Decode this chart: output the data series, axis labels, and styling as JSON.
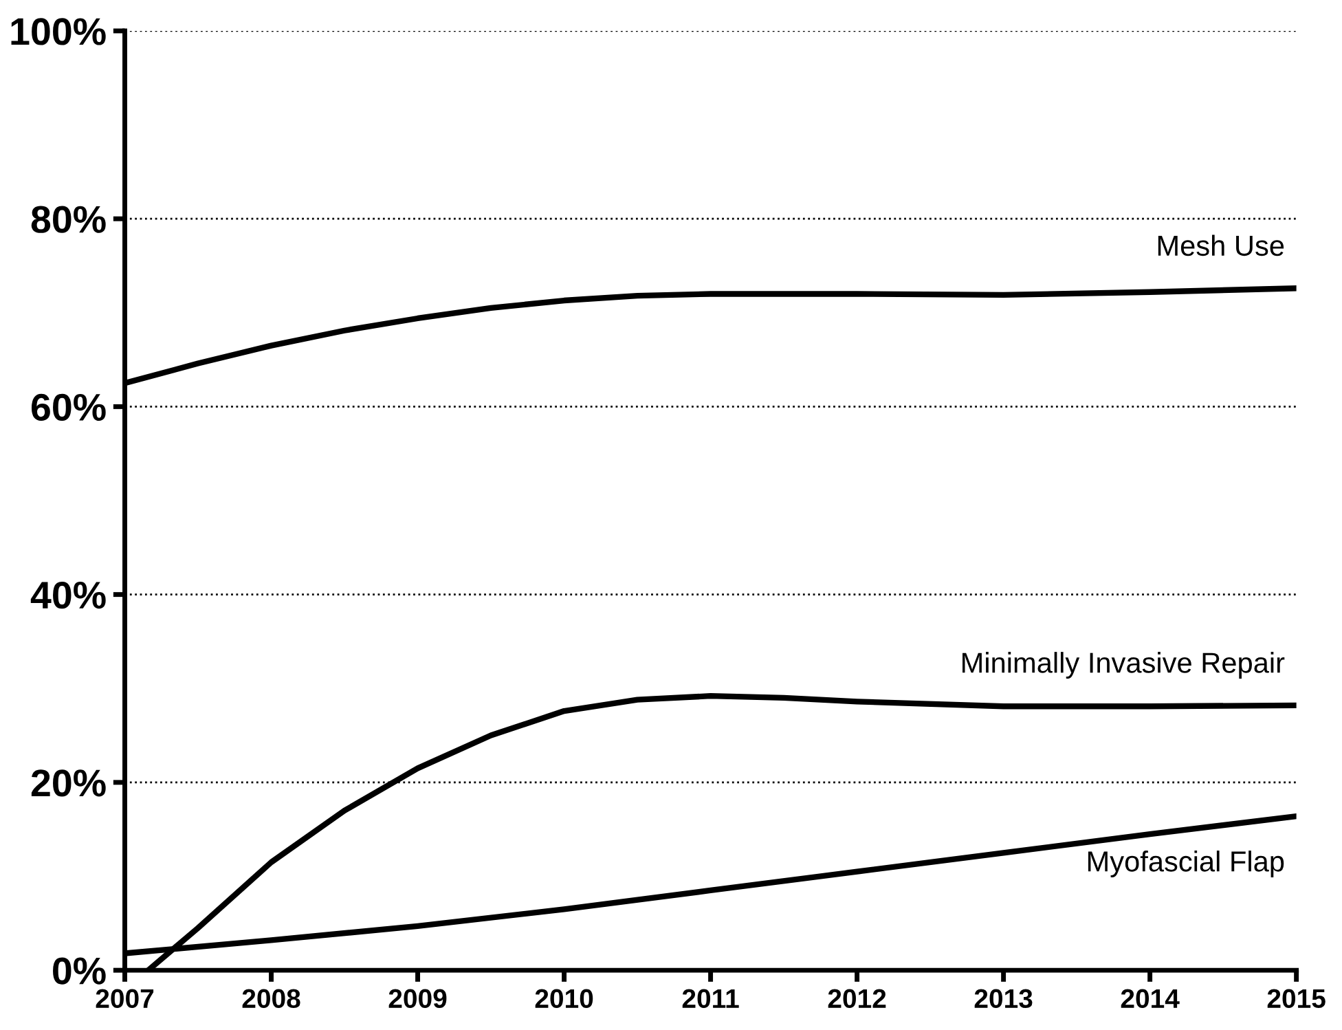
{
  "chart_data": {
    "type": "line",
    "series": [
      {
        "name": "Mesh Use",
        "color": "#000000",
        "x": [
          2007,
          2007.5,
          2008,
          2008.5,
          2009,
          2009.5,
          2010,
          2010.5,
          2011,
          2012,
          2013,
          2014,
          2015
        ],
        "values": [
          62.5,
          64.6,
          66.5,
          68.1,
          69.4,
          70.5,
          71.3,
          71.8,
          72.0,
          72.0,
          71.9,
          72.2,
          72.6
        ]
      },
      {
        "name": "Minimally Invasive Repair",
        "color": "#000000",
        "x": [
          2007.16,
          2007.5,
          2008,
          2008.5,
          2009,
          2009.5,
          2010,
          2010.5,
          2011,
          2011.5,
          2012,
          2013,
          2014,
          2015
        ],
        "values": [
          0,
          4.5,
          11.5,
          17.0,
          21.5,
          25.0,
          27.6,
          28.8,
          29.2,
          29.0,
          28.6,
          28.1,
          28.1,
          28.2
        ]
      },
      {
        "name": "Myofascial Flap",
        "color": "#000000",
        "x": [
          2007,
          2008,
          2009,
          2010,
          2011,
          2012,
          2013,
          2014,
          2015
        ],
        "values": [
          1.8,
          3.2,
          4.7,
          6.5,
          8.5,
          10.5,
          12.5,
          14.5,
          16.4
        ]
      }
    ],
    "xlim": [
      2007,
      2015
    ],
    "xticks": [
      2007,
      2008,
      2009,
      2010,
      2011,
      2012,
      2013,
      2014,
      2015
    ],
    "ylim": [
      0,
      100
    ],
    "yticks": [
      {
        "value": 0,
        "label": "0%"
      },
      {
        "value": 20,
        "label": "20%"
      },
      {
        "value": 40,
        "label": "40%"
      },
      {
        "value": 60,
        "label": "60%"
      },
      {
        "value": 80,
        "label": "80%"
      },
      {
        "value": 100,
        "label": "100%"
      }
    ],
    "grid": "y",
    "line_style": "solid",
    "marker": "none",
    "legend": false
  }
}
